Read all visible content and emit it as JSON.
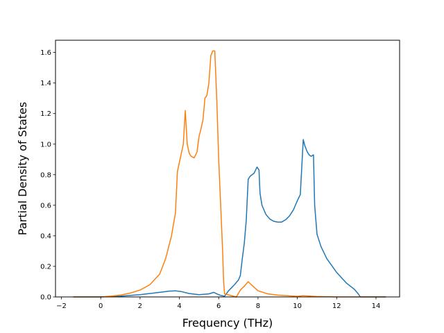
{
  "chart_data": {
    "type": "line",
    "title": "",
    "xlabel": "Frequency (THz)",
    "ylabel": "Partial Density of States",
    "xlim": [
      -2.3,
      15.2
    ],
    "ylim": [
      0,
      1.68
    ],
    "xticks": [
      -2,
      0,
      2,
      4,
      6,
      8,
      10,
      12,
      14
    ],
    "xtick_labels": [
      "−2",
      "0",
      "2",
      "4",
      "6",
      "8",
      "10",
      "12",
      "14"
    ],
    "yticks": [
      0.0,
      0.2,
      0.4,
      0.6,
      0.8,
      1.0,
      1.2,
      1.4,
      1.6
    ],
    "ytick_labels": [
      "0.0",
      "0.2",
      "0.4",
      "0.6",
      "0.8",
      "1.0",
      "1.2",
      "1.4",
      "1.6"
    ],
    "grid": false,
    "legend": "none",
    "series": [
      {
        "color": "#1f77b4",
        "x": [
          -1.4,
          0.0,
          1.0,
          2.0,
          3.0,
          3.5,
          3.8,
          4.1,
          4.5,
          5.0,
          5.5,
          5.75,
          5.9,
          6.1,
          6.3,
          6.5,
          6.8,
          7.0,
          7.1,
          7.2,
          7.3,
          7.4,
          7.5,
          7.6,
          7.8,
          7.95,
          8.05,
          8.1,
          8.2,
          8.4,
          8.6,
          8.8,
          9.0,
          9.2,
          9.4,
          9.6,
          9.8,
          10.0,
          10.15,
          10.3,
          10.38,
          10.5,
          10.6,
          10.7,
          10.82,
          10.88,
          11.0,
          11.2,
          11.5,
          12.0,
          12.5,
          12.9,
          13.1,
          13.2,
          14.5
        ],
        "y": [
          0.0,
          0.0,
          0.005,
          0.015,
          0.03,
          0.038,
          0.04,
          0.035,
          0.022,
          0.015,
          0.02,
          0.03,
          0.02,
          0.01,
          0.005,
          0.04,
          0.08,
          0.11,
          0.14,
          0.25,
          0.35,
          0.5,
          0.77,
          0.79,
          0.81,
          0.85,
          0.83,
          0.68,
          0.6,
          0.54,
          0.51,
          0.495,
          0.49,
          0.49,
          0.505,
          0.53,
          0.57,
          0.63,
          0.67,
          1.03,
          0.99,
          0.95,
          0.93,
          0.92,
          0.93,
          0.6,
          0.41,
          0.33,
          0.25,
          0.16,
          0.09,
          0.05,
          0.02,
          0.0,
          0.0
        ]
      },
      {
        "color": "#ff7f0e",
        "x": [
          -1.4,
          0.0,
          0.5,
          1.0,
          1.5,
          2.0,
          2.5,
          3.0,
          3.3,
          3.6,
          3.8,
          3.9,
          4.0,
          4.2,
          4.3,
          4.4,
          4.5,
          4.6,
          4.75,
          4.9,
          5.0,
          5.1,
          5.2,
          5.3,
          5.4,
          5.5,
          5.6,
          5.7,
          5.8,
          5.9,
          6.0,
          6.1,
          6.2,
          6.25,
          6.3,
          6.9,
          7.1,
          7.3,
          7.5,
          7.7,
          8.0,
          8.5,
          9.0,
          9.5,
          10.0,
          10.3,
          11.0,
          12.0,
          13.0,
          14.5
        ],
        "y": [
          0.0,
          0.0,
          0.005,
          0.012,
          0.025,
          0.045,
          0.08,
          0.15,
          0.25,
          0.4,
          0.55,
          0.82,
          0.88,
          1.0,
          1.22,
          1.0,
          0.94,
          0.92,
          0.91,
          0.95,
          1.05,
          1.1,
          1.16,
          1.3,
          1.32,
          1.4,
          1.58,
          1.61,
          1.61,
          1.3,
          0.9,
          0.6,
          0.3,
          0.1,
          0.02,
          0.0,
          0.045,
          0.07,
          0.1,
          0.075,
          0.04,
          0.02,
          0.012,
          0.008,
          0.004,
          0.008,
          0.003,
          0.0,
          0.0,
          0.0
        ]
      }
    ]
  }
}
